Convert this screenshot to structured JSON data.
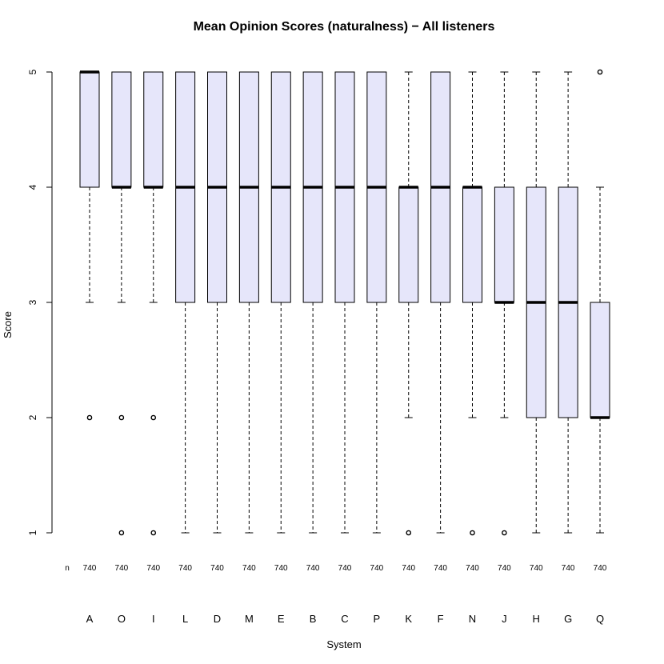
{
  "chart_data": {
    "type": "boxplot",
    "title": "Mean Opinion Scores (naturalness) − All listeners",
    "xlabel": "System",
    "ylabel": "Score",
    "ylim": [
      1,
      5
    ],
    "yticks": [
      "1",
      "2",
      "3",
      "4",
      "5"
    ],
    "n_label": "n",
    "box_fill": "#e6e6fa",
    "categories": [
      "A",
      "O",
      "I",
      "L",
      "D",
      "M",
      "E",
      "B",
      "C",
      "P",
      "K",
      "F",
      "N",
      "J",
      "H",
      "G",
      "Q"
    ],
    "n": [
      740,
      740,
      740,
      740,
      740,
      740,
      740,
      740,
      740,
      740,
      740,
      740,
      740,
      740,
      740,
      740,
      740
    ],
    "boxes": [
      {
        "lower_whisker": 3,
        "q1": 4,
        "median": 5,
        "q3": 5,
        "upper_whisker": 5,
        "outliers": [
          2
        ]
      },
      {
        "lower_whisker": 3,
        "q1": 4,
        "median": 4,
        "q3": 5,
        "upper_whisker": 5,
        "outliers": [
          2,
          1
        ]
      },
      {
        "lower_whisker": 3,
        "q1": 4,
        "median": 4,
        "q3": 5,
        "upper_whisker": 5,
        "outliers": [
          2,
          1
        ]
      },
      {
        "lower_whisker": 1,
        "q1": 3,
        "median": 4,
        "q3": 5,
        "upper_whisker": 5,
        "outliers": []
      },
      {
        "lower_whisker": 1,
        "q1": 3,
        "median": 4,
        "q3": 5,
        "upper_whisker": 5,
        "outliers": []
      },
      {
        "lower_whisker": 1,
        "q1": 3,
        "median": 4,
        "q3": 5,
        "upper_whisker": 5,
        "outliers": []
      },
      {
        "lower_whisker": 1,
        "q1": 3,
        "median": 4,
        "q3": 5,
        "upper_whisker": 5,
        "outliers": []
      },
      {
        "lower_whisker": 1,
        "q1": 3,
        "median": 4,
        "q3": 5,
        "upper_whisker": 5,
        "outliers": []
      },
      {
        "lower_whisker": 1,
        "q1": 3,
        "median": 4,
        "q3": 5,
        "upper_whisker": 5,
        "outliers": []
      },
      {
        "lower_whisker": 1,
        "q1": 3,
        "median": 4,
        "q3": 5,
        "upper_whisker": 5,
        "outliers": []
      },
      {
        "lower_whisker": 2,
        "q1": 3,
        "median": 4,
        "q3": 4,
        "upper_whisker": 5,
        "outliers": [
          1
        ]
      },
      {
        "lower_whisker": 1,
        "q1": 3,
        "median": 4,
        "q3": 5,
        "upper_whisker": 5,
        "outliers": []
      },
      {
        "lower_whisker": 2,
        "q1": 3,
        "median": 4,
        "q3": 4,
        "upper_whisker": 5,
        "outliers": [
          1
        ]
      },
      {
        "lower_whisker": 2,
        "q1": 3,
        "median": 3,
        "q3": 4,
        "upper_whisker": 5,
        "outliers": [
          1
        ]
      },
      {
        "lower_whisker": 1,
        "q1": 2,
        "median": 3,
        "q3": 4,
        "upper_whisker": 5,
        "outliers": []
      },
      {
        "lower_whisker": 1,
        "q1": 2,
        "median": 3,
        "q3": 4,
        "upper_whisker": 5,
        "outliers": []
      },
      {
        "lower_whisker": 1,
        "q1": 2,
        "median": 2,
        "q3": 3,
        "upper_whisker": 4,
        "outliers": [
          5
        ]
      }
    ]
  }
}
